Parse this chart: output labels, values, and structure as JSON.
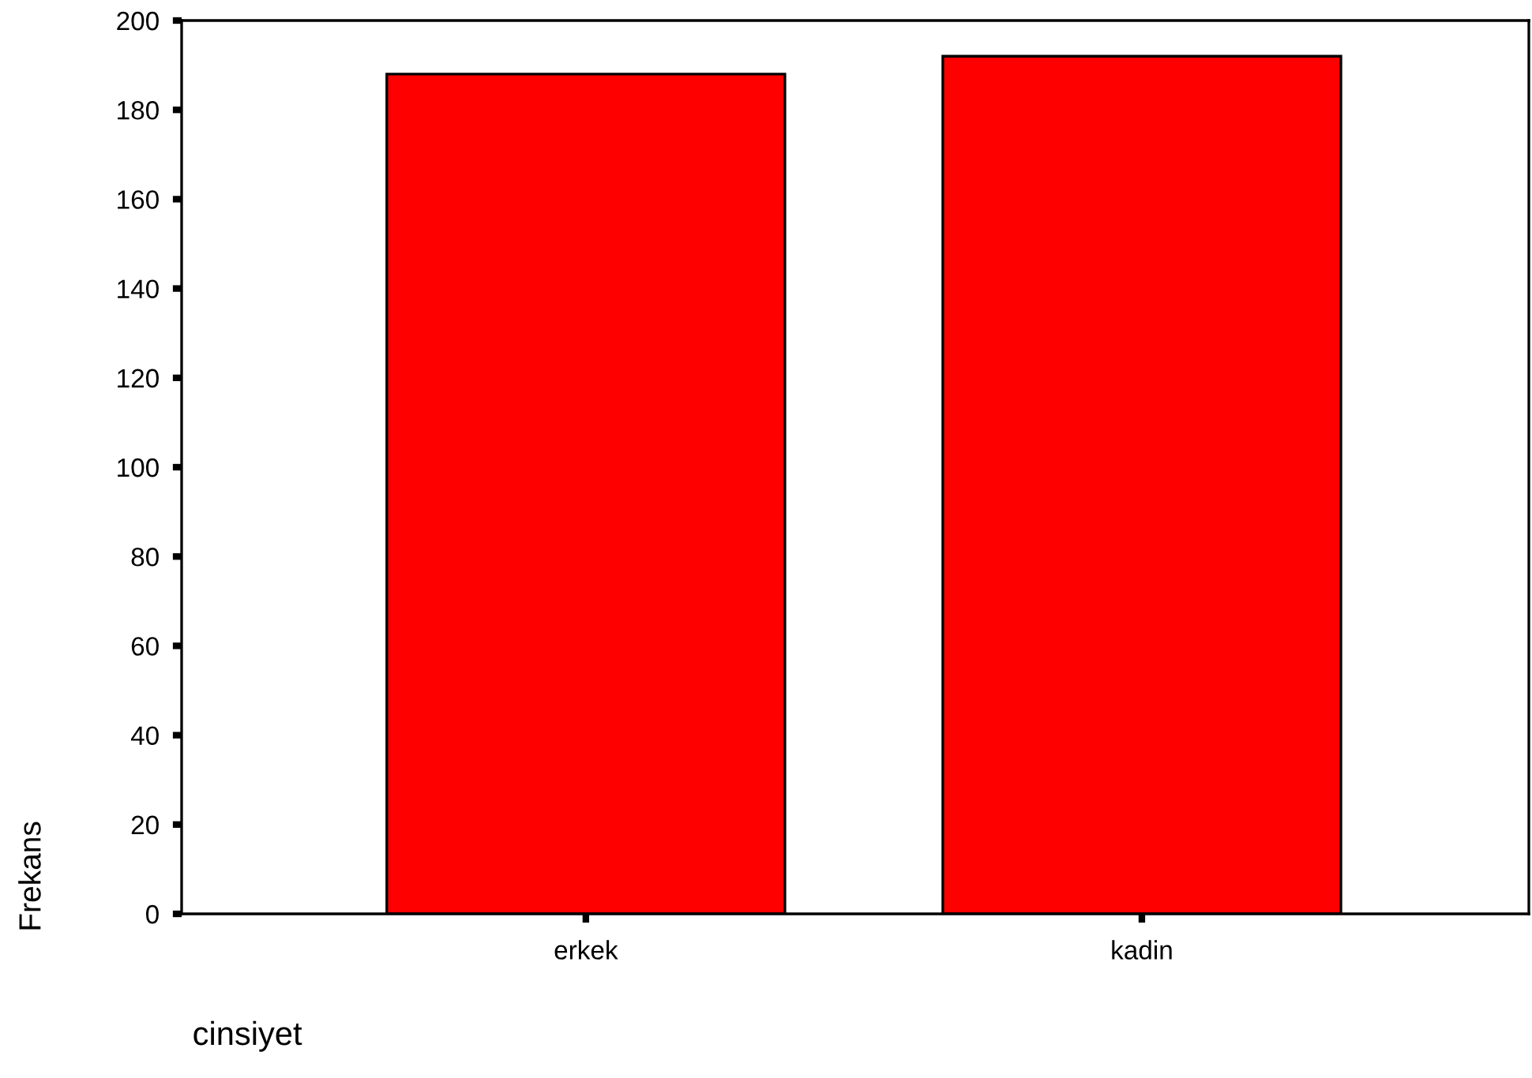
{
  "chart_data": {
    "type": "bar",
    "xlabel": "cinsiyet",
    "ylabel": "Frekans",
    "categories": [
      "erkek",
      "kadin"
    ],
    "values": [
      188,
      192
    ],
    "color": "#ff0000",
    "ylim": [
      0,
      200
    ],
    "yticks": [
      0,
      20,
      40,
      60,
      80,
      100,
      120,
      140,
      160,
      180,
      200
    ],
    "grid": false
  }
}
